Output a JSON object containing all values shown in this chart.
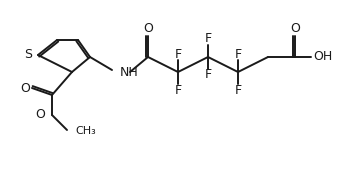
{
  "bg_color": "#ffffff",
  "line_color": "#1a1a1a",
  "line_width": 1.4,
  "font_size": 8.5,
  "fig_w": 3.52,
  "fig_h": 1.76,
  "dpi": 100
}
